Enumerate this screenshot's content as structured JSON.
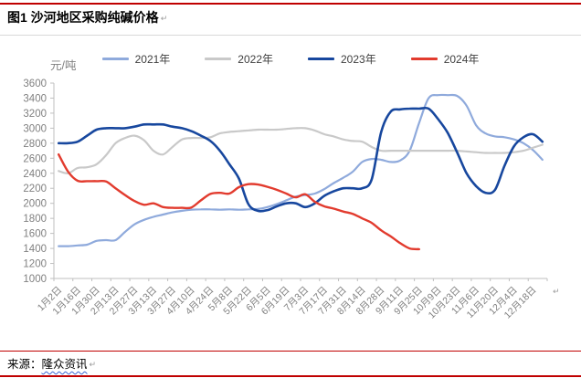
{
  "page": {
    "title": "图1 沙河地区采购纯碱价格",
    "return_mark": "↵",
    "source_prefix": "来源：",
    "source_name": "隆众资讯"
  },
  "chart_data": {
    "type": "line",
    "title": "沙河地区采购纯碱价格",
    "ylabel": "元/吨",
    "ylim": [
      1000,
      3600
    ],
    "ytick_step": 200,
    "grid": false,
    "legend_position": "top",
    "axis_color": "#bfbfbf",
    "tick_label_color": "#808080",
    "x_labels": [
      "1月2日",
      "1月16日",
      "1月30日",
      "2月13日",
      "2月27日",
      "3月13日",
      "3月27日",
      "4月10日",
      "4月24日",
      "5月8日",
      "5月22日",
      "6月5日",
      "6月19日",
      "7月3日",
      "7月17日",
      "7月31日",
      "8月14日",
      "8月28日",
      "9月11日",
      "9月25日",
      "10月9日",
      "10月23日",
      "11月6日",
      "11月20日",
      "12月4日",
      "12月18日"
    ],
    "points_per_year": 52,
    "series": [
      {
        "name": "2021年",
        "color": "#8faadc",
        "width": 2.2,
        "values": [
          1430,
          1430,
          1440,
          1450,
          1500,
          1510,
          1510,
          1620,
          1720,
          1780,
          1820,
          1850,
          1880,
          1900,
          1915,
          1920,
          1920,
          1915,
          1920,
          1915,
          1920,
          1925,
          1950,
          1990,
          2040,
          2090,
          2110,
          2130,
          2190,
          2270,
          2340,
          2420,
          2550,
          2590,
          2580,
          2550,
          2570,
          2700,
          3070,
          3400,
          3440,
          3440,
          3430,
          3300,
          3040,
          2930,
          2890,
          2880,
          2850,
          2800,
          2710,
          2580
        ]
      },
      {
        "name": "2022年",
        "color": "#c9c9c9",
        "width": 2.2,
        "values": [
          2430,
          2400,
          2470,
          2480,
          2520,
          2640,
          2800,
          2870,
          2900,
          2840,
          2700,
          2650,
          2750,
          2850,
          2870,
          2870,
          2880,
          2930,
          2950,
          2960,
          2970,
          2980,
          2980,
          2980,
          2990,
          3000,
          3000,
          2970,
          2920,
          2890,
          2850,
          2830,
          2820,
          2750,
          2700,
          2700,
          2700,
          2700,
          2700,
          2700,
          2700,
          2700,
          2700,
          2690,
          2680,
          2670,
          2670,
          2670,
          2680,
          2700,
          2740,
          2780
        ]
      },
      {
        "name": "2023年",
        "color": "#17479e",
        "width": 2.6,
        "values": [
          2800,
          2800,
          2820,
          2900,
          2980,
          3000,
          3000,
          3000,
          3020,
          3050,
          3050,
          3050,
          3020,
          3000,
          2960,
          2900,
          2830,
          2700,
          2520,
          2330,
          1990,
          1900,
          1910,
          1960,
          2000,
          2000,
          1950,
          2000,
          2100,
          2160,
          2200,
          2200,
          2200,
          2320,
          2950,
          3220,
          3250,
          3260,
          3260,
          3260,
          3120,
          2940,
          2680,
          2400,
          2230,
          2140,
          2180,
          2500,
          2760,
          2880,
          2920,
          2820
        ]
      },
      {
        "name": "2024年",
        "color": "#e23b2e",
        "width": 2.4,
        "values": [
          2650,
          2420,
          2300,
          2295,
          2295,
          2290,
          2200,
          2110,
          2030,
          1980,
          2000,
          1950,
          1940,
          1940,
          1945,
          2040,
          2125,
          2140,
          2130,
          2215,
          2255,
          2250,
          2220,
          2180,
          2130,
          2080,
          2120,
          2020,
          1960,
          1930,
          1890,
          1860,
          1800,
          1740,
          1640,
          1560,
          1470,
          1400,
          1390
        ]
      }
    ]
  }
}
